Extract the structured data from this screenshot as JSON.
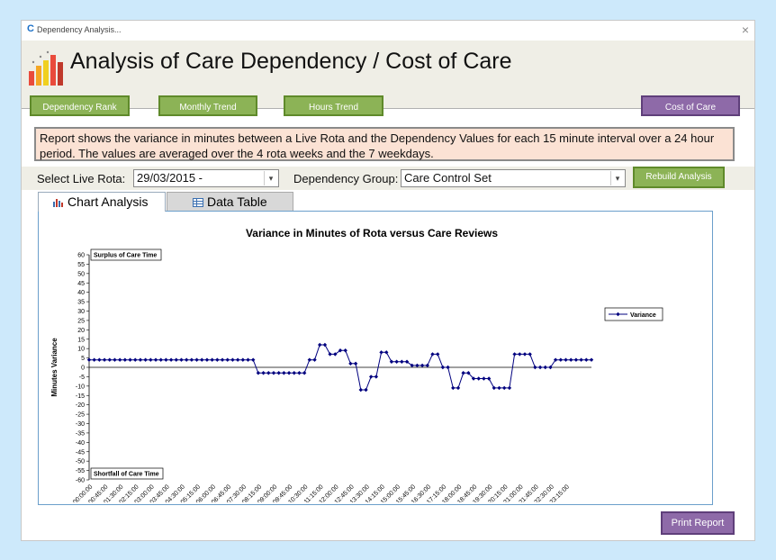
{
  "window": {
    "title": "Dependency Analysis...",
    "close_glyph": "×",
    "app_icon": "C"
  },
  "header": {
    "title": "Analysis of Care Dependency / Cost of Care"
  },
  "nav": {
    "dependency_rank": "Dependency Rank",
    "monthly_trend": "Monthly Trend",
    "hours_trend": "Hours Trend",
    "cost_of_care": "Cost of Care"
  },
  "info": "Report shows the variance in minutes between a Live Rota and the Dependency Values for each 15 minute interval over a 24 hour period.  The values are averaged over the 4 rota weeks and the 7 weekdays.",
  "controls": {
    "rota_label": "Select Live Rota:",
    "rota_value": "29/03/2015 -",
    "group_label": "Dependency Group:",
    "group_value": "Care Control Set",
    "rebuild_label": "Rebuild Analysis"
  },
  "tabs": {
    "chart": "Chart Analysis",
    "table": "Data Table"
  },
  "print_label": "Print Report",
  "colors": {
    "green_button": "#8cb356",
    "purple_button": "#8e6aa8",
    "series": "#00007f",
    "info_bg": "#fbe2d4"
  },
  "chart_data": {
    "type": "line",
    "title": "Variance in Minutes of Rota versus Care Reviews",
    "ylabel": "Minutes Variance",
    "ylim": [
      -60,
      60
    ],
    "yticks": [
      60,
      55,
      50,
      45,
      40,
      35,
      30,
      25,
      20,
      15,
      10,
      5,
      0,
      -5,
      -10,
      -15,
      -20,
      -25,
      -30,
      -35,
      -40,
      -45,
      -50,
      -55,
      -60
    ],
    "annotations": {
      "top": "Surplus of Care Time",
      "bottom": "Shortfall of Care Time"
    },
    "xtick_labels": [
      "00:00:00",
      "00:45:00",
      "01:30:00",
      "02:15:00",
      "03:00:00",
      "03:45:00",
      "04:30:00",
      "05:15:00",
      "06:00:00",
      "06:45:00",
      "07:30:00",
      "08:15:00",
      "09:00:00",
      "09:45:00",
      "10:30:00",
      "11:15:00",
      "12:00:00",
      "12:45:00",
      "13:30:00",
      "14:15:00",
      "15:00:00",
      "15:45:00",
      "16:30:00",
      "17:15:00",
      "18:00:00",
      "18:45:00",
      "19:30:00",
      "20:15:00",
      "21:00:00",
      "21:45:00",
      "22:30:00",
      "23:15:00"
    ],
    "legend": "right",
    "series": [
      {
        "name": "Variance",
        "values": [
          4,
          4,
          4,
          4,
          4,
          4,
          4,
          4,
          4,
          4,
          4,
          4,
          4,
          4,
          4,
          4,
          4,
          4,
          4,
          4,
          4,
          4,
          4,
          4,
          4,
          4,
          4,
          4,
          4,
          4,
          4,
          4,
          4,
          -3,
          -3,
          -3,
          -3,
          -3,
          -3,
          -3,
          -3,
          -3,
          -3,
          4,
          4,
          12,
          12,
          7,
          7,
          9,
          9,
          2,
          2,
          -12,
          -12,
          -5,
          -5,
          8,
          8,
          3,
          3,
          3,
          3,
          1,
          1,
          1,
          1,
          7,
          7,
          0,
          0,
          -11,
          -11,
          -3,
          -3,
          -6,
          -6,
          -6,
          -6,
          -11,
          -11,
          -11,
          -11,
          7,
          7,
          7,
          7,
          0,
          0,
          0,
          0,
          4,
          4,
          4,
          4,
          4,
          4,
          4,
          4
        ]
      }
    ]
  }
}
